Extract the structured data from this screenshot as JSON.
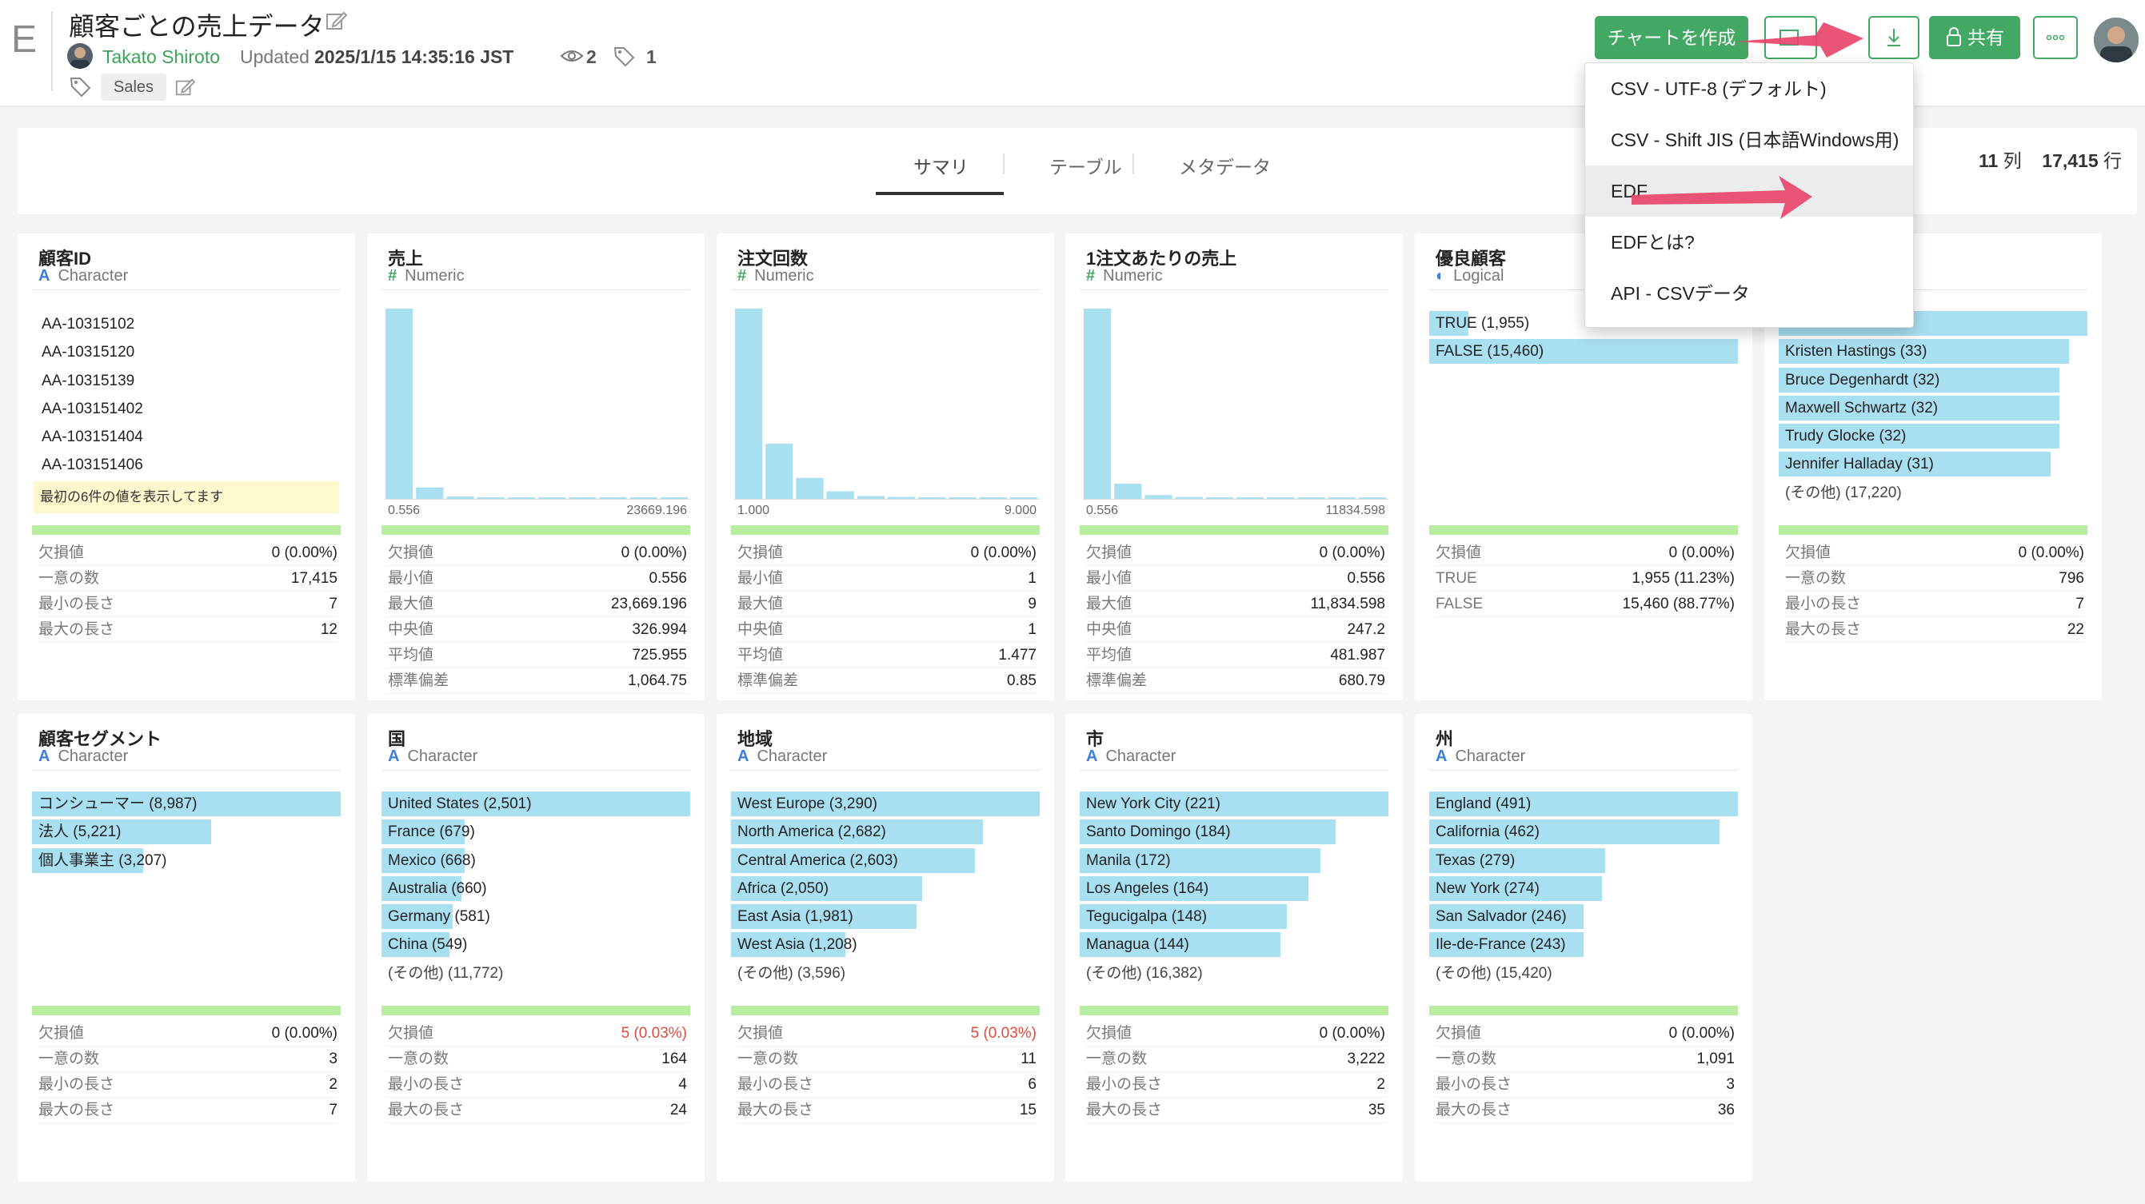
{
  "header": {
    "app_letter": "E",
    "title": "顧客ごとの売上データ",
    "owner": "Takato Shiroto",
    "updated_label": "Updated",
    "updated_time": "2025/1/15 14:35:16 JST",
    "view_count": "2",
    "tag_count": "1",
    "tag": "Sales"
  },
  "toolbar": {
    "create_chart": "チャートを作成",
    "share": "共有"
  },
  "tabs": {
    "summary": "サマリ",
    "table": "テーブル",
    "metadata": "メタデータ"
  },
  "stats": {
    "columns": "11",
    "columns_unit": "列",
    "rows": "17,415",
    "rows_unit": "行"
  },
  "download_menu": {
    "items": [
      "CSV - UTF-8 (デフォルト)",
      "CSV - Shift JIS (日本語Windows用)",
      "EDF",
      "EDFとは?",
      "API - CSVデータ"
    ],
    "active_index": 2
  },
  "cards": [
    {
      "name": "顧客ID",
      "type": "Character",
      "type_glyph": "A",
      "values": [
        "AA-10315102",
        "AA-10315120",
        "AA-10315139",
        "AA-103151402",
        "AA-103151404",
        "AA-103151406"
      ],
      "note": "最初の6件の値を表示してます",
      "stats": [
        [
          "欠損値",
          "0 (0.00%)"
        ],
        [
          "一意の数",
          "17,415"
        ],
        [
          "最小の長さ",
          "7"
        ],
        [
          "最大の長さ",
          "12"
        ]
      ]
    },
    {
      "name": "売上",
      "type": "Numeric",
      "type_glyph": "#",
      "histogram": {
        "values": [
          1.0,
          0.06,
          0.012,
          0.008,
          0.006,
          0.005,
          0.004,
          0.004,
          0.003,
          0.003
        ],
        "min": "0.556",
        "max": "23669.196"
      },
      "stats": [
        [
          "欠損値",
          "0 (0.00%)"
        ],
        [
          "最小値",
          "0.556"
        ],
        [
          "最大値",
          "23,669.196"
        ],
        [
          "中央値",
          "326.994"
        ],
        [
          "平均値",
          "725.955"
        ],
        [
          "標準偏差",
          "1,064.75"
        ]
      ]
    },
    {
      "name": "注文回数",
      "type": "Numeric",
      "type_glyph": "#",
      "histogram": {
        "values": [
          1.0,
          0.29,
          0.11,
          0.04,
          0.015,
          0.01,
          0.007,
          0.005,
          0.004,
          0.003
        ],
        "min": "1.000",
        "max": "9.000"
      },
      "stats": [
        [
          "欠損値",
          "0 (0.00%)"
        ],
        [
          "最小値",
          "1"
        ],
        [
          "最大値",
          "9"
        ],
        [
          "中央値",
          "1"
        ],
        [
          "平均値",
          "1.477"
        ],
        [
          "標準偏差",
          "0.85"
        ]
      ]
    },
    {
      "name": "1注文あたりの売上",
      "type": "Numeric",
      "type_glyph": "#",
      "histogram": {
        "values": [
          1.0,
          0.08,
          0.02,
          0.01,
          0.007,
          0.005,
          0.004,
          0.004,
          0.003,
          0.003
        ],
        "min": "0.556",
        "max": "11834.598"
      },
      "stats": [
        [
          "欠損値",
          "0 (0.00%)"
        ],
        [
          "最小値",
          "0.556"
        ],
        [
          "最大値",
          "11,834.598"
        ],
        [
          "中央値",
          "247.2"
        ],
        [
          "平均値",
          "481.987"
        ],
        [
          "標準偏差",
          "680.79"
        ]
      ]
    },
    {
      "name": "優良顧客",
      "type": "Logical",
      "type_glyph": "◐",
      "bars": [
        [
          "TRUE (1,955)",
          0.126
        ],
        [
          "FALSE (15,460)",
          1.0
        ]
      ],
      "stats": [
        [
          "欠損値",
          "0 (0.00%)"
        ],
        [
          "TRUE",
          "1,955 (11.23%)"
        ],
        [
          "FALSE",
          "15,460 (88.77%)"
        ]
      ]
    },
    {
      "name": "",
      "type": "",
      "type_glyph": "",
      "bars": [
        [
          "",
          1.0
        ],
        [
          "Kristen Hastings (33)",
          0.94
        ],
        [
          "Bruce Degenhardt (32)",
          0.91
        ],
        [
          "Maxwell Schwartz (32)",
          0.91
        ],
        [
          "Trudy Glocke (32)",
          0.91
        ],
        [
          "Jennifer Halladay (31)",
          0.88
        ]
      ],
      "other": "(その他) (17,220)",
      "stats": [
        [
          "欠損値",
          "0 (0.00%)"
        ],
        [
          "一意の数",
          "796"
        ],
        [
          "最小の長さ",
          "7"
        ],
        [
          "最大の長さ",
          "22"
        ]
      ]
    },
    {
      "name": "顧客セグメント",
      "type": "Character",
      "type_glyph": "A",
      "bars": [
        [
          "コンシューマー (8,987)",
          1.0
        ],
        [
          "法人 (5,221)",
          0.58
        ],
        [
          "個人事業主 (3,207)",
          0.36
        ]
      ],
      "stats": [
        [
          "欠損値",
          "0 (0.00%)"
        ],
        [
          "一意の数",
          "3"
        ],
        [
          "最小の長さ",
          "2"
        ],
        [
          "最大の長さ",
          "7"
        ]
      ]
    },
    {
      "name": "国",
      "type": "Character",
      "type_glyph": "A",
      "bars": [
        [
          "United States (2,501)",
          1.0
        ],
        [
          "France (679)",
          0.27
        ],
        [
          "Mexico (668)",
          0.27
        ],
        [
          "Australia (660)",
          0.26
        ],
        [
          "Germany (581)",
          0.23
        ],
        [
          "China (549)",
          0.22
        ]
      ],
      "other": "(その他) (11,772)",
      "stats": [
        [
          "欠損値",
          "5 (0.03%)"
        ],
        [
          "一意の数",
          "164"
        ],
        [
          "最小の長さ",
          "4"
        ],
        [
          "最大の長さ",
          "24"
        ]
      ],
      "warn_first": true
    },
    {
      "name": "地域",
      "type": "Character",
      "type_glyph": "A",
      "bars": [
        [
          "West Europe (3,290)",
          1.0
        ],
        [
          "North America (2,682)",
          0.815
        ],
        [
          "Central America (2,603)",
          0.79
        ],
        [
          "Africa (2,050)",
          0.62
        ],
        [
          "East Asia (1,981)",
          0.6
        ],
        [
          "West Asia (1,208)",
          0.37
        ]
      ],
      "other": "(その他) (3,596)",
      "stats": [
        [
          "欠損値",
          "5 (0.03%)"
        ],
        [
          "一意の数",
          "11"
        ],
        [
          "最小の長さ",
          "6"
        ],
        [
          "最大の長さ",
          "15"
        ]
      ],
      "warn_first": true
    },
    {
      "name": "市",
      "type": "Character",
      "type_glyph": "A",
      "bars": [
        [
          "New York City (221)",
          1.0
        ],
        [
          "Santo Domingo (184)",
          0.83
        ],
        [
          "Manila (172)",
          0.78
        ],
        [
          "Los Angeles (164)",
          0.74
        ],
        [
          "Tegucigalpa (148)",
          0.67
        ],
        [
          "Managua (144)",
          0.65
        ]
      ],
      "other": "(その他) (16,382)",
      "stats": [
        [
          "欠損値",
          "0 (0.00%)"
        ],
        [
          "一意の数",
          "3,222"
        ],
        [
          "最小の長さ",
          "2"
        ],
        [
          "最大の長さ",
          "35"
        ]
      ]
    },
    {
      "name": "州",
      "type": "Character",
      "type_glyph": "A",
      "bars": [
        [
          "England (491)",
          1.0
        ],
        [
          "California (462)",
          0.94
        ],
        [
          "Texas (279)",
          0.57
        ],
        [
          "New York (274)",
          0.56
        ],
        [
          "San Salvador (246)",
          0.5
        ],
        [
          "Ile-de-France (243)",
          0.5
        ]
      ],
      "other": "(その他) (15,420)",
      "stats": [
        [
          "欠損値",
          "0 (0.00%)"
        ],
        [
          "一意の数",
          "1,091"
        ],
        [
          "最小の長さ",
          "3"
        ],
        [
          "最大の長さ",
          "36"
        ]
      ]
    }
  ],
  "colors": {
    "accent_green": "#43a863",
    "bar_blue": "#a8dff1",
    "quality_green": "#b8ec9e",
    "annotation_arrow": "#e8456a",
    "warn_red": "#e04c3c"
  }
}
